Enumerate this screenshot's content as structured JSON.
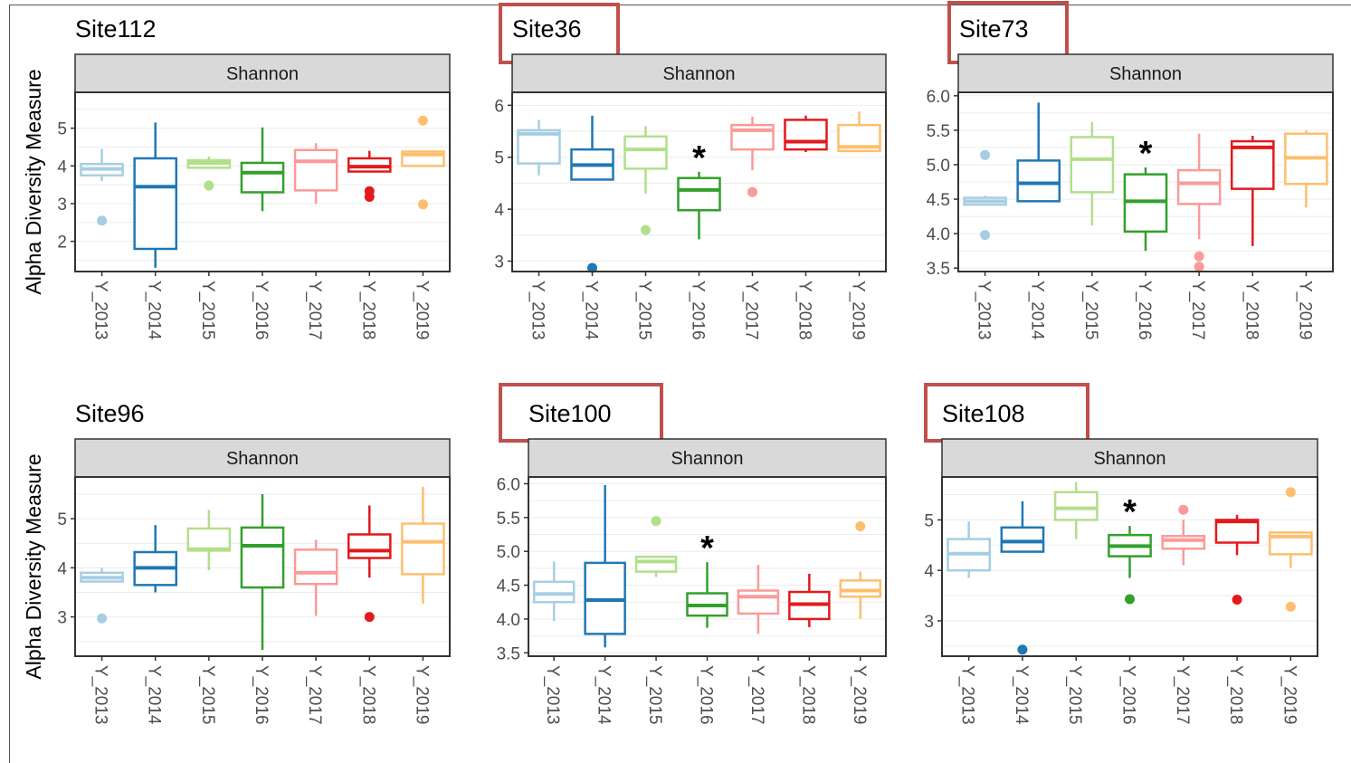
{
  "facet_label": "Shannon",
  "y_axis_title": "Alpha Diversity Measure",
  "significance_marker": "*",
  "colors": {
    "Y_2013": "#a6cee3",
    "Y_2014": "#1f78b4",
    "Y_2015": "#b2df8a",
    "Y_2016": "#33a02c",
    "Y_2017": "#fb9a99",
    "Y_2018": "#e31a1c",
    "Y_2019": "#fdbf6f",
    "highlight_box": "#c0504d",
    "strip": "#d9d9d9"
  },
  "chart_data": [
    {
      "type": "boxplot",
      "title": "Site112",
      "highlighted": false,
      "categories": [
        "Y_2013",
        "Y_2014",
        "Y_2015",
        "Y_2016",
        "Y_2017",
        "Y_2018",
        "Y_2019"
      ],
      "ylim": [
        1.2,
        5.95
      ],
      "yticks": [
        2,
        3,
        4,
        5
      ],
      "boxes": [
        {
          "min": 3.6,
          "q1": 3.75,
          "median": 3.92,
          "q3": 4.05,
          "max": 4.45,
          "outliers": [
            2.55
          ],
          "significant": false
        },
        {
          "min": 1.3,
          "q1": 1.8,
          "median": 3.45,
          "q3": 4.2,
          "max": 5.15,
          "outliers": [],
          "significant": false
        },
        {
          "min": 3.95,
          "q1": 3.95,
          "median": 4.08,
          "q3": 4.15,
          "max": 4.25,
          "outliers": [
            3.48
          ],
          "significant": false
        },
        {
          "min": 2.8,
          "q1": 3.3,
          "median": 3.82,
          "q3": 4.08,
          "max": 5.02,
          "outliers": [],
          "significant": false
        },
        {
          "min": 3.0,
          "q1": 3.35,
          "median": 4.12,
          "q3": 4.42,
          "max": 4.6,
          "outliers": [],
          "significant": false
        },
        {
          "min": 3.85,
          "q1": 3.85,
          "median": 3.98,
          "q3": 4.2,
          "max": 4.4,
          "outliers": [
            3.33,
            3.18
          ],
          "significant": false
        },
        {
          "min": 4.0,
          "q1": 4.0,
          "median": 4.3,
          "q3": 4.38,
          "max": 4.4,
          "outliers": [
            5.2,
            2.98
          ],
          "significant": false
        }
      ]
    },
    {
      "type": "boxplot",
      "title": "Site36",
      "highlighted": true,
      "categories": [
        "Y_2013",
        "Y_2014",
        "Y_2015",
        "Y_2016",
        "Y_2017",
        "Y_2018",
        "Y_2019"
      ],
      "ylim": [
        2.8,
        6.25
      ],
      "yticks": [
        3,
        4,
        5,
        6
      ],
      "boxes": [
        {
          "min": 4.65,
          "q1": 4.88,
          "median": 5.45,
          "q3": 5.52,
          "max": 5.72,
          "outliers": [],
          "significant": false
        },
        {
          "min": 4.55,
          "q1": 4.57,
          "median": 4.85,
          "q3": 5.15,
          "max": 5.8,
          "outliers": [
            2.87
          ],
          "significant": false
        },
        {
          "min": 4.3,
          "q1": 4.78,
          "median": 5.15,
          "q3": 5.4,
          "max": 5.6,
          "outliers": [
            3.6
          ],
          "significant": false
        },
        {
          "min": 3.42,
          "q1": 3.98,
          "median": 4.37,
          "q3": 4.6,
          "max": 4.72,
          "outliers": [],
          "significant": true
        },
        {
          "min": 4.75,
          "q1": 5.15,
          "median": 5.52,
          "q3": 5.62,
          "max": 5.78,
          "outliers": [
            4.33
          ],
          "significant": false
        },
        {
          "min": 5.1,
          "q1": 5.15,
          "median": 5.3,
          "q3": 5.72,
          "max": 5.8,
          "outliers": [],
          "significant": false
        },
        {
          "min": 5.1,
          "q1": 5.12,
          "median": 5.2,
          "q3": 5.62,
          "max": 5.88,
          "outliers": [],
          "significant": false
        }
      ]
    },
    {
      "type": "boxplot",
      "title": "Site73",
      "highlighted": true,
      "categories": [
        "Y_2013",
        "Y_2014",
        "Y_2015",
        "Y_2016",
        "Y_2017",
        "Y_2018",
        "Y_2019"
      ],
      "ylim": [
        3.45,
        6.05
      ],
      "yticks": [
        3.5,
        4.0,
        4.5,
        5.0,
        5.5,
        6.0
      ],
      "ytick_labels": [
        "3.5",
        "4.0",
        "4.5",
        "5.0",
        "5.5",
        "6.0"
      ],
      "boxes": [
        {
          "min": 4.42,
          "q1": 4.42,
          "median": 4.47,
          "q3": 4.52,
          "max": 4.55,
          "outliers": [
            5.14,
            3.98
          ],
          "significant": false
        },
        {
          "min": 4.47,
          "q1": 4.47,
          "median": 4.73,
          "q3": 5.06,
          "max": 5.9,
          "outliers": [],
          "significant": false
        },
        {
          "min": 4.12,
          "q1": 4.6,
          "median": 5.08,
          "q3": 5.4,
          "max": 5.62,
          "outliers": [],
          "significant": false
        },
        {
          "min": 3.75,
          "q1": 4.03,
          "median": 4.47,
          "q3": 4.86,
          "max": 4.96,
          "outliers": [],
          "significant": true
        },
        {
          "min": 3.92,
          "q1": 4.43,
          "median": 4.73,
          "q3": 4.92,
          "max": 5.45,
          "outliers": [
            3.67,
            3.52
          ],
          "significant": false
        },
        {
          "min": 3.82,
          "q1": 4.65,
          "median": 5.25,
          "q3": 5.34,
          "max": 5.42,
          "outliers": [],
          "significant": false
        },
        {
          "min": 4.38,
          "q1": 4.72,
          "median": 5.1,
          "q3": 5.45,
          "max": 5.5,
          "outliers": [],
          "significant": false
        }
      ]
    },
    {
      "type": "boxplot",
      "title": "Site96",
      "highlighted": false,
      "categories": [
        "Y_2013",
        "Y_2014",
        "Y_2015",
        "Y_2016",
        "Y_2017",
        "Y_2018",
        "Y_2019"
      ],
      "ylim": [
        2.2,
        5.85
      ],
      "yticks": [
        3,
        4,
        5
      ],
      "boxes": [
        {
          "min": 3.72,
          "q1": 3.72,
          "median": 3.8,
          "q3": 3.9,
          "max": 4.0,
          "outliers": [
            2.97
          ],
          "significant": false
        },
        {
          "min": 3.5,
          "q1": 3.65,
          "median": 4.0,
          "q3": 4.32,
          "max": 4.87,
          "outliers": [],
          "significant": false
        },
        {
          "min": 3.95,
          "q1": 4.35,
          "median": 4.38,
          "q3": 4.8,
          "max": 5.18,
          "outliers": [],
          "significant": false
        },
        {
          "min": 2.33,
          "q1": 3.6,
          "median": 4.45,
          "q3": 4.82,
          "max": 5.5,
          "outliers": [],
          "significant": false
        },
        {
          "min": 3.02,
          "q1": 3.67,
          "median": 3.9,
          "q3": 4.37,
          "max": 4.57,
          "outliers": [],
          "significant": false
        },
        {
          "min": 3.8,
          "q1": 4.2,
          "median": 4.35,
          "q3": 4.68,
          "max": 5.27,
          "outliers": [
            3.0
          ],
          "significant": false
        },
        {
          "min": 3.27,
          "q1": 3.87,
          "median": 4.53,
          "q3": 4.9,
          "max": 5.65,
          "outliers": [],
          "significant": false
        }
      ]
    },
    {
      "type": "boxplot",
      "title": "Site100",
      "highlighted": true,
      "categories": [
        "Y_2013",
        "Y_2014",
        "Y_2015",
        "Y_2016",
        "Y_2017",
        "Y_2018",
        "Y_2019"
      ],
      "ylim": [
        3.45,
        6.1
      ],
      "yticks": [
        3.5,
        4.0,
        4.5,
        5.0,
        5.5,
        6.0
      ],
      "ytick_labels": [
        "3.5",
        "4.0",
        "4.5",
        "5.0",
        "5.5",
        "6.0"
      ],
      "boxes": [
        {
          "min": 3.97,
          "q1": 4.25,
          "median": 4.37,
          "q3": 4.55,
          "max": 4.85,
          "outliers": [],
          "significant": false
        },
        {
          "min": 3.58,
          "q1": 3.78,
          "median": 4.28,
          "q3": 4.83,
          "max": 5.98,
          "outliers": [],
          "significant": false
        },
        {
          "min": 4.62,
          "q1": 4.7,
          "median": 4.85,
          "q3": 4.92,
          "max": 4.92,
          "outliers": [
            5.45
          ],
          "significant": false
        },
        {
          "min": 3.87,
          "q1": 4.05,
          "median": 4.2,
          "q3": 4.38,
          "max": 4.84,
          "outliers": [],
          "significant": true
        },
        {
          "min": 3.78,
          "q1": 4.08,
          "median": 4.33,
          "q3": 4.42,
          "max": 4.8,
          "outliers": [],
          "significant": false
        },
        {
          "min": 3.88,
          "q1": 4.0,
          "median": 4.22,
          "q3": 4.4,
          "max": 4.67,
          "outliers": [],
          "significant": false
        },
        {
          "min": 4.0,
          "q1": 4.33,
          "median": 4.42,
          "q3": 4.57,
          "max": 4.7,
          "outliers": [
            5.37
          ],
          "significant": false
        }
      ]
    },
    {
      "type": "boxplot",
      "title": "Site108",
      "highlighted": true,
      "categories": [
        "Y_2013",
        "Y_2014",
        "Y_2015",
        "Y_2016",
        "Y_2017",
        "Y_2018",
        "Y_2019"
      ],
      "ylim": [
        2.3,
        5.85
      ],
      "yticks": [
        3,
        4,
        5
      ],
      "boxes": [
        {
          "min": 3.85,
          "q1": 4.0,
          "median": 4.33,
          "q3": 4.62,
          "max": 4.97,
          "outliers": [],
          "significant": false
        },
        {
          "min": 4.35,
          "q1": 4.37,
          "median": 4.57,
          "q3": 4.85,
          "max": 5.37,
          "outliers": [
            2.43
          ],
          "significant": false
        },
        {
          "min": 4.62,
          "q1": 5.0,
          "median": 5.23,
          "q3": 5.55,
          "max": 5.75,
          "outliers": [],
          "significant": false
        },
        {
          "min": 3.85,
          "q1": 4.28,
          "median": 4.48,
          "q3": 4.7,
          "max": 4.88,
          "outliers": [
            3.43
          ],
          "significant": true
        },
        {
          "min": 4.1,
          "q1": 4.43,
          "median": 4.6,
          "q3": 4.68,
          "max": 5.0,
          "outliers": [
            5.2
          ],
          "significant": false
        },
        {
          "min": 4.3,
          "q1": 4.55,
          "median": 4.97,
          "q3": 5.0,
          "max": 5.1,
          "outliers": [
            3.42
          ],
          "significant": false
        },
        {
          "min": 4.05,
          "q1": 4.32,
          "median": 4.67,
          "q3": 4.75,
          "max": 4.75,
          "outliers": [
            5.55,
            3.28
          ],
          "significant": false
        }
      ]
    }
  ]
}
